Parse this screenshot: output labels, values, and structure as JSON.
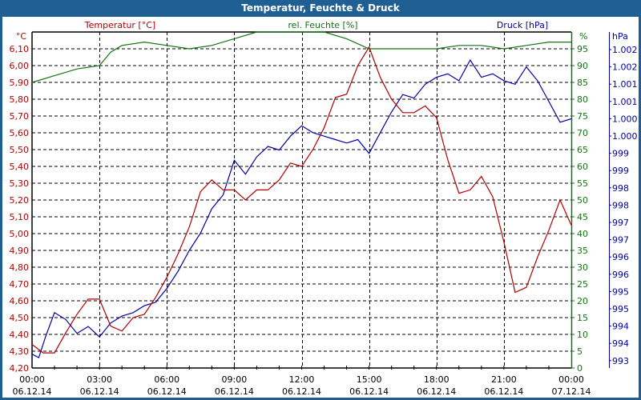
{
  "window": {
    "title": "Temperatur, Feuchte & Druck"
  },
  "colors": {
    "temperature": "#b40000",
    "humidity": "#137413",
    "pressure": "#0000a8",
    "title_bar": "#1f5f94",
    "grid": "#000000"
  },
  "chart_data": {
    "type": "line",
    "title": "Temperatur, Feuchte & Druck",
    "legend": [
      "Temperatur [°C]",
      "rel. Feuchte [%]",
      "Druck [hPa]"
    ],
    "axes": {
      "left": {
        "unit": "°C",
        "label": "Temperatur [°C]",
        "range": [
          4.2,
          6.1
        ],
        "ticks": [
          "6,10",
          "6,00",
          "5,90",
          "5,80",
          "5,70",
          "5,60",
          "5,50",
          "5,40",
          "5,30",
          "5,20",
          "5,10",
          "5,00",
          "4,90",
          "4,80",
          "4,70",
          "4,60",
          "4,50",
          "4,40",
          "4,30",
          "4,20"
        ]
      },
      "right1": {
        "unit": "%",
        "label": "rel. Feuchte [%]",
        "range": [
          0,
          95
        ],
        "ticks": [
          "95",
          "90",
          "85",
          "80",
          "75",
          "70",
          "65",
          "60",
          "55",
          "50",
          "45",
          "40",
          "35",
          "30",
          "25",
          "20",
          "15",
          "10",
          "5",
          "0"
        ]
      },
      "right2": {
        "unit": "hPa",
        "label": "Druck [hPa]",
        "range": [
          993,
          1002
        ],
        "ticks": [
          "1.002",
          "1.002",
          "1.001",
          "1.001",
          "1.000",
          "1.000",
          "999",
          "999",
          "998",
          "998",
          "997",
          "997",
          "996",
          "996",
          "995",
          "995",
          "994",
          "994",
          "993"
        ]
      },
      "x": {
        "ticks": [
          {
            "time": "00:00",
            "date": "06.12.14"
          },
          {
            "time": "03:00",
            "date": "06.12.14"
          },
          {
            "time": "06:00",
            "date": "06.12.14"
          },
          {
            "time": "09:00",
            "date": "06.12.14"
          },
          {
            "time": "12:00",
            "date": "06.12.14"
          },
          {
            "time": "15:00",
            "date": "06.12.14"
          },
          {
            "time": "18:00",
            "date": "06.12.14"
          },
          {
            "time": "21:00",
            "date": "06.12.14"
          },
          {
            "time": "00:00",
            "date": "07.12.14"
          }
        ]
      }
    },
    "grid": true,
    "series": [
      {
        "name": "Temperatur [°C]",
        "x_hours": [
          0,
          0.5,
          1,
          1.5,
          2,
          2.5,
          3,
          3.5,
          4,
          4.5,
          5,
          5.5,
          6,
          6.5,
          7,
          7.5,
          8,
          8.5,
          9,
          9.5,
          10,
          10.5,
          11,
          11.5,
          12,
          12.5,
          13,
          13.5,
          14,
          14.5,
          15,
          15.5,
          16,
          16.5,
          17,
          17.5,
          18,
          18.5,
          19,
          19.5,
          20,
          20.5,
          21,
          21.5,
          22,
          22.5,
          23,
          23.5,
          24
        ],
        "values": [
          4.34,
          4.29,
          4.29,
          4.41,
          4.52,
          4.61,
          4.61,
          4.45,
          4.42,
          4.5,
          4.52,
          4.62,
          4.74,
          4.88,
          5.04,
          5.25,
          5.32,
          5.26,
          5.26,
          5.2,
          5.26,
          5.26,
          5.32,
          5.42,
          5.4,
          5.5,
          5.63,
          5.81,
          5.83,
          6.0,
          6.11,
          5.93,
          5.8,
          5.72,
          5.72,
          5.76,
          5.69,
          5.44,
          5.24,
          5.26,
          5.34,
          5.22,
          4.95,
          4.65,
          4.68,
          4.86,
          5.02,
          5.2,
          5.05
        ]
      },
      {
        "name": "rel. Feuchte [%]",
        "x_hours": [
          0,
          1,
          2,
          3,
          3.5,
          4,
          5,
          6,
          7,
          8,
          9,
          10,
          11,
          12,
          13,
          14,
          15,
          16,
          17,
          18,
          19,
          20,
          21,
          22,
          23,
          24
        ],
        "values": [
          85,
          87,
          89,
          90,
          94,
          96,
          97,
          96,
          95,
          96,
          98,
          100,
          100,
          100,
          100,
          98,
          95,
          95,
          95,
          95,
          96,
          96,
          95,
          96,
          97,
          97
        ]
      },
      {
        "name": "Druck [hPa]",
        "x_hours": [
          0,
          0.3,
          0.6,
          1,
          1.5,
          2,
          2.5,
          3,
          3.5,
          4,
          4.5,
          5,
          5.5,
          6,
          6.5,
          7,
          7.5,
          8,
          8.5,
          9,
          9.5,
          10,
          10.5,
          11,
          11.5,
          12,
          12.5,
          13,
          13.5,
          14,
          14.5,
          15,
          15.5,
          16,
          16.5,
          17,
          17.5,
          18,
          18.5,
          19,
          19.5,
          20,
          20.5,
          21,
          21.5,
          22,
          22.5,
          23,
          23.5,
          24
        ],
        "values": [
          993.4,
          993.3,
          993.9,
          994.6,
          994.4,
          994.0,
          994.2,
          993.9,
          994.3,
          994.5,
          994.6,
          994.8,
          994.9,
          995.3,
          995.8,
          996.4,
          996.9,
          997.6,
          998.0,
          999.0,
          998.6,
          999.1,
          999.4,
          999.3,
          999.7,
          1000.0,
          999.8,
          999.7,
          999.6,
          999.5,
          999.6,
          999.2,
          999.8,
          1000.4,
          1000.9,
          1000.8,
          1001.2,
          1001.4,
          1001.5,
          1001.3,
          1001.9,
          1001.4,
          1001.5,
          1001.3,
          1001.2,
          1001.7,
          1001.3,
          1000.7,
          1000.1,
          1000.2
        ]
      }
    ]
  }
}
